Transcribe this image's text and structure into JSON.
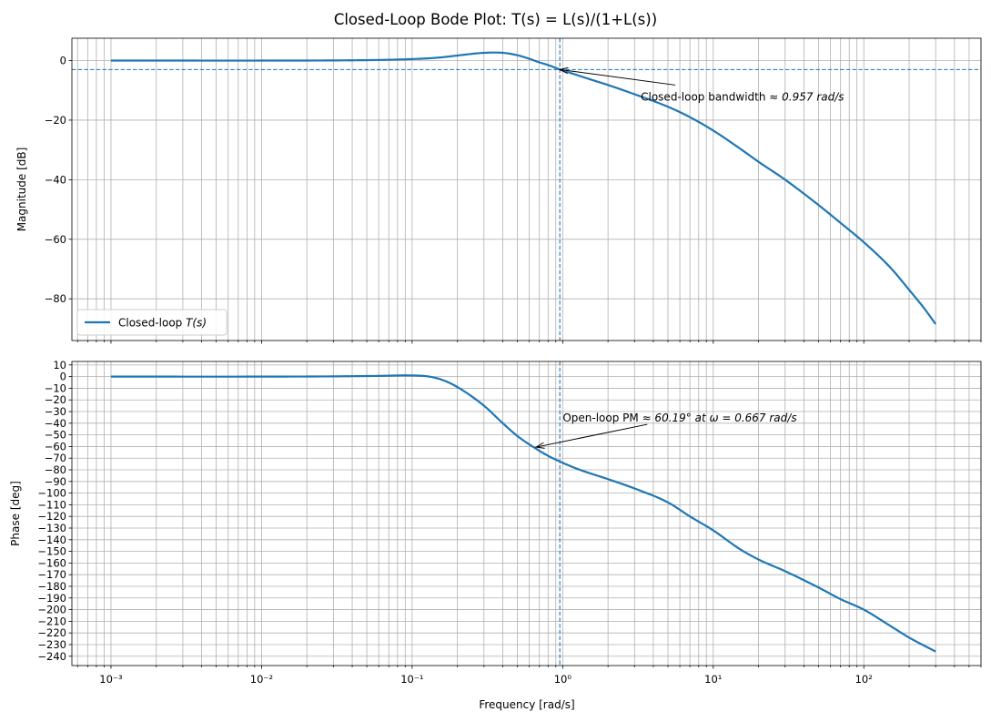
{
  "chart_data": {
    "type": "line",
    "title": "Closed-Loop Bode Plot: T(s) = L(s)/(1+L(s))",
    "xscale": "log",
    "xlim": [
      0.00055,
      600
    ],
    "xlabel": "Frequency [rad/s]",
    "x_ticks": [
      0.001,
      0.01,
      0.1,
      1,
      10,
      100
    ],
    "x_tick_labels": [
      "10⁻³",
      "10⁻²",
      "10⁻¹",
      "10⁰",
      "10¹",
      "10²"
    ],
    "grid": "major and minor",
    "series_color": "#1f77b4",
    "panels": [
      {
        "id": "magnitude",
        "ylabel": "Magnitude [dB]",
        "ylim": [
          -94,
          7.5
        ],
        "y_ticks": [
          0,
          -20,
          -40,
          -60,
          -80
        ],
        "y_tick_labels": [
          "0",
          "−20",
          "−40",
          "−60",
          "−80"
        ],
        "legend": {
          "location": "lower-left",
          "entries": [
            {
              "label_plain": "Closed-loop ",
              "label_math": "T(s)"
            }
          ]
        },
        "series": [
          {
            "name": "Closed-loop T(s)",
            "x": [
              0.001,
              0.003,
              0.01,
              0.03,
              0.06,
              0.1,
              0.15,
              0.2,
              0.3,
              0.4,
              0.5,
              0.6,
              0.7,
              0.8,
              0.957,
              1.2,
              1.5,
              2,
              3,
              5,
              7,
              10,
              15,
              20,
              30,
              50,
              70,
              100,
              150,
              200,
              250,
              300
            ],
            "y": [
              0,
              0,
              0,
              0.05,
              0.2,
              0.5,
              1.0,
              1.7,
              2.6,
              2.6,
              1.8,
              0.6,
              -0.6,
              -1.5,
              -3.0,
              -4.6,
              -6.2,
              -8.2,
              -11.3,
              -15.5,
              -19.0,
              -23.5,
              -29.5,
              -34.0,
              -40.0,
              -48.5,
              -54.5,
              -61.0,
              -69.5,
              -77.0,
              -83.0,
              -88.5
            ]
          }
        ],
        "reference_lines": {
          "horizontal_db": -3.01,
          "vertical_rad_s": 0.957
        },
        "annotation": {
          "text_plain": "Closed-loop bandwidth ",
          "text_math": "≈ 0.957 rad/s",
          "point": [
            0.957,
            -3.0
          ],
          "text_anchor": [
            3.3,
            -12.2
          ]
        }
      },
      {
        "id": "phase",
        "ylabel": "Phase [deg]",
        "ylim": [
          -248,
          13
        ],
        "y_ticks": [
          10,
          0,
          -10,
          -20,
          -30,
          -40,
          -50,
          -60,
          -70,
          -80,
          -90,
          -100,
          -110,
          -120,
          -130,
          -140,
          -150,
          -160,
          -170,
          -180,
          -190,
          -200,
          -210,
          -220,
          -230,
          -240
        ],
        "y_tick_labels": [
          "10",
          "0",
          "−10",
          "−20",
          "−30",
          "−40",
          "−50",
          "−60",
          "−70",
          "−80",
          "−90",
          "−100",
          "−110",
          "−120",
          "−130",
          "−140",
          "−150",
          "−160",
          "−170",
          "−180",
          "−190",
          "−200",
          "−210",
          "−220",
          "−230",
          "−240"
        ],
        "series": [
          {
            "name": "Closed-loop T(s)",
            "x": [
              0.001,
              0.01,
              0.03,
              0.06,
              0.1,
              0.13,
              0.16,
              0.2,
              0.3,
              0.4,
              0.5,
              0.667,
              0.8,
              1.0,
              1.3,
              2,
              3,
              5,
              7,
              10,
              15,
              20,
              30,
              50,
              70,
              100,
              150,
              200,
              300
            ],
            "y": [
              0,
              0,
              0.2,
              0.6,
              1,
              0,
              -3,
              -9,
              -25,
              -40,
              -51,
              -62,
              -68,
              -74,
              -80,
              -88,
              -96,
              -108,
              -120,
              -132,
              -148,
              -157,
              -167,
              -181,
              -191,
              -200,
              -214,
              -224,
              -236
            ]
          }
        ],
        "reference_lines": {
          "vertical_rad_s": 0.957
        },
        "annotation": {
          "text_plain": "Open-loop PM ",
          "text_math": "≈ 60.19°  at ω = 0.667 rad/s",
          "point": [
            0.667,
            -60.5
          ],
          "text_anchor": [
            1.0,
            -35.5
          ]
        }
      }
    ]
  }
}
